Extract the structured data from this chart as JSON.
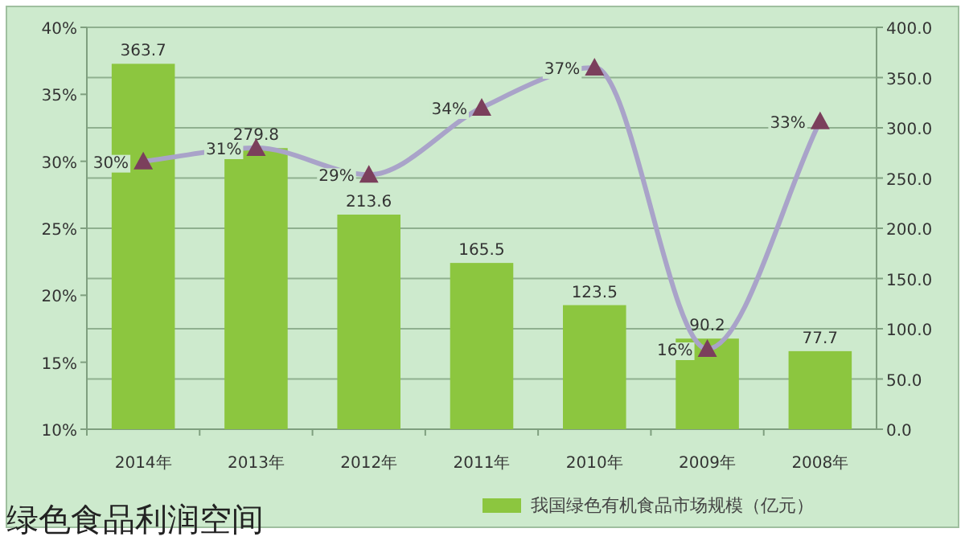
{
  "chart_data": {
    "type": "bar",
    "title": "绿色食品利润空间",
    "categories": [
      "2014年",
      "2013年",
      "2012年",
      "2011年",
      "2010年",
      "2009年",
      "2008年"
    ],
    "series": [
      {
        "name": "我国绿色有机食品市场规模（亿元）",
        "axis": "y2",
        "color": "#8cc63f",
        "values": [
          363.7,
          279.8,
          213.6,
          165.5,
          123.5,
          90.2,
          77.7
        ],
        "value_labels": [
          "363.7",
          "279.8",
          "213.6",
          "165.5",
          "123.5",
          "90.2",
          "77.7"
        ]
      },
      {
        "type": "line",
        "axis": "y",
        "color": "#a9a3c9",
        "values": [
          30,
          31,
          29,
          34,
          37,
          16,
          33
        ],
        "value_labels": [
          "30%",
          "31%",
          "29%",
          "34%",
          "37%",
          "16%",
          "33%"
        ]
      }
    ],
    "ylim": [
      10,
      40
    ],
    "yticks": [
      {
        "value": 10,
        "label": "10%"
      },
      {
        "value": 15,
        "label": "15%"
      },
      {
        "value": 20,
        "label": "20%"
      },
      {
        "value": 25,
        "label": "25%"
      },
      {
        "value": 30,
        "label": "30%"
      },
      {
        "value": 35,
        "label": "35%"
      },
      {
        "value": 40,
        "label": "40%"
      }
    ],
    "y2lim": [
      0,
      400
    ],
    "y2ticks": [
      {
        "value": 0,
        "label": "0.0"
      },
      {
        "value": 50,
        "label": "50.0"
      },
      {
        "value": 100,
        "label": "100.0"
      },
      {
        "value": 150,
        "label": "150.0"
      },
      {
        "value": 200,
        "label": "200.0"
      },
      {
        "value": 250,
        "label": "250.0"
      },
      {
        "value": 300,
        "label": "300.0"
      },
      {
        "value": 350,
        "label": "350.0"
      },
      {
        "value": 400,
        "label": "400.0"
      }
    ],
    "grid": "y2",
    "legend": "bottom",
    "marker": "triangle",
    "line_style": "solid"
  }
}
